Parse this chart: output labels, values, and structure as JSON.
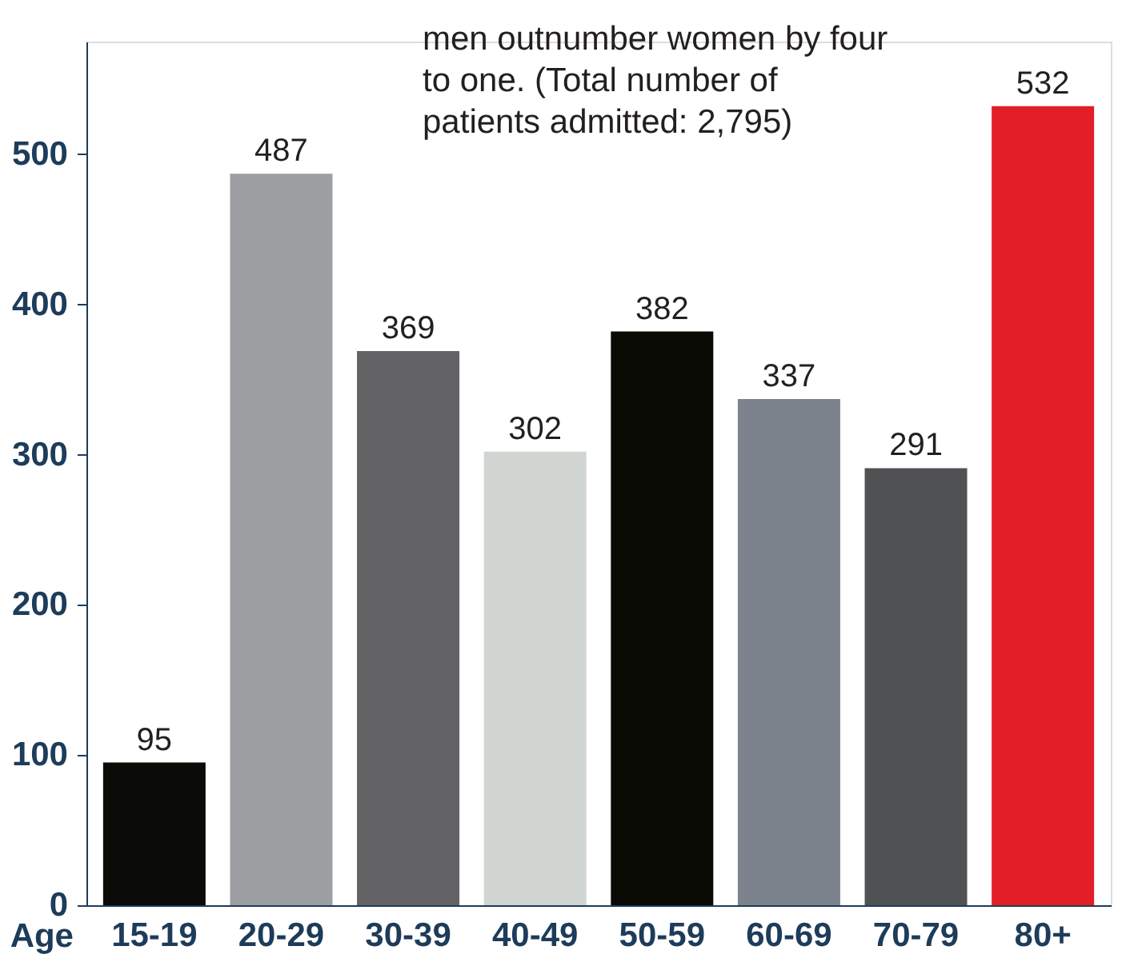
{
  "chart_data": {
    "type": "bar",
    "xlabel": "Age",
    "categories": [
      "15-19",
      "20-29",
      "30-39",
      "40-49",
      "50-59",
      "60-69",
      "70-79",
      "80+"
    ],
    "values": [
      95,
      487,
      369,
      302,
      382,
      337,
      291,
      532
    ],
    "colors": [
      "#0b0c07",
      "#9d9ea2",
      "#636365",
      "#d0d5d2",
      "#0b0b06",
      "#7c838c",
      "#505153",
      "#e21f26"
    ],
    "data_labels": true,
    "ylim": [
      0,
      575
    ],
    "yticks": [
      0,
      100,
      200,
      300,
      400,
      500
    ],
    "grid": false,
    "annotations": [
      "men outnumber women by four to one. (Total number of patients admitted: 2,795)"
    ]
  }
}
